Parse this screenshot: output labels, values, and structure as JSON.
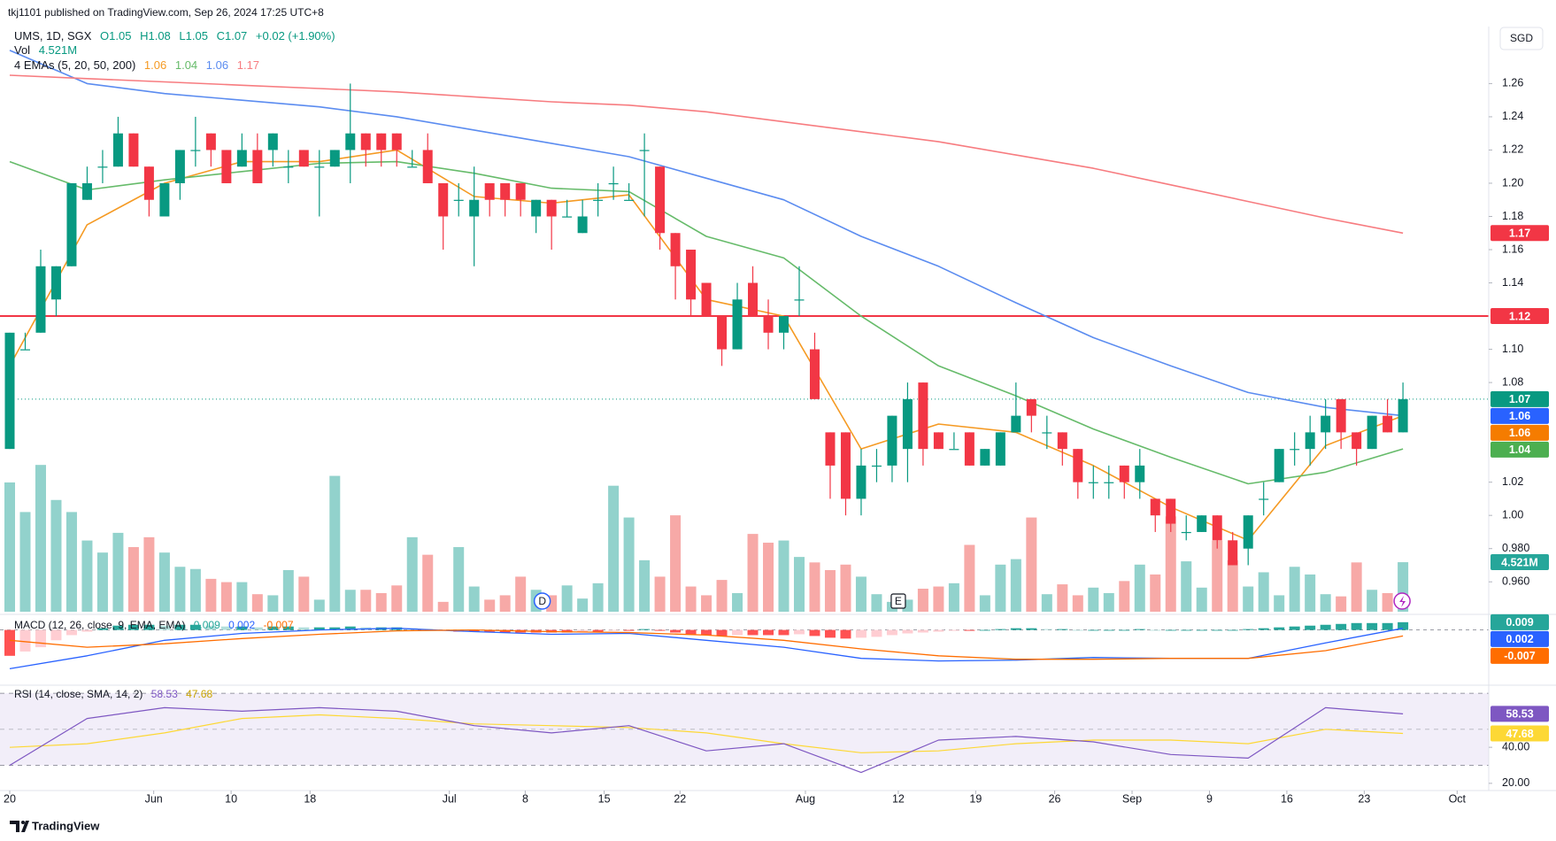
{
  "chart_data": {
    "type": "candlestick",
    "header": "tkj1101 published on TradingView.com, Sep 26, 2024 17:25 UTC+8",
    "symbol": "UMS, 1D, SGX",
    "ohlc_text": [
      "O1.05",
      "H1.08",
      "L1.05",
      "C1.07",
      "+0.02 (+1.90%)"
    ],
    "currency": "SGD",
    "watermark": "TradingView",
    "up_color": "#089981",
    "down_color": "#f23645",
    "ylim": [
      0.942,
      1.289
    ],
    "yticks": [
      {
        "value": 1.26,
        "label": "1.26"
      },
      {
        "value": 1.24,
        "label": "1.24"
      },
      {
        "value": 1.22,
        "label": "1.22"
      },
      {
        "value": 1.2,
        "label": "1.20"
      },
      {
        "value": 1.18,
        "label": "1.18"
      },
      {
        "value": 1.16,
        "label": "1.16"
      },
      {
        "value": 1.14,
        "label": "1.14"
      },
      {
        "value": 1.1,
        "label": "1.10"
      },
      {
        "value": 1.08,
        "label": "1.08"
      },
      {
        "value": 1.02,
        "label": "1.02"
      },
      {
        "value": 1.0,
        "label": "1.00"
      },
      {
        "value": 0.98,
        "label": "0.980"
      },
      {
        "value": 0.96,
        "label": "0.960"
      }
    ],
    "xticks": [
      {
        "value": 0,
        "label": "20"
      },
      {
        "value": 9.3,
        "label": "Jun"
      },
      {
        "value": 14.3,
        "label": "10"
      },
      {
        "value": 19.4,
        "label": "18"
      },
      {
        "value": 28.4,
        "label": "Jul"
      },
      {
        "value": 33.3,
        "label": "8"
      },
      {
        "value": 38.4,
        "label": "15"
      },
      {
        "value": 43.3,
        "label": "22"
      },
      {
        "value": 51.4,
        "label": "Aug"
      },
      {
        "value": 57.4,
        "label": "12"
      },
      {
        "value": 62.4,
        "label": "19"
      },
      {
        "value": 67.5,
        "label": "26"
      },
      {
        "value": 72.5,
        "label": "Sep"
      },
      {
        "value": 77.5,
        "label": "9"
      },
      {
        "value": 82.5,
        "label": "16"
      },
      {
        "value": 87.5,
        "label": "23"
      },
      {
        "value": 93.5,
        "label": "Oct"
      }
    ],
    "ohlc": [
      [
        1.04,
        1.11,
        1.04,
        1.11
      ],
      [
        1.1,
        1.11,
        1.1,
        1.1
      ],
      [
        1.11,
        1.16,
        1.11,
        1.15
      ],
      [
        1.13,
        1.15,
        1.12,
        1.15
      ],
      [
        1.15,
        1.2,
        1.15,
        1.2
      ],
      [
        1.19,
        1.21,
        1.19,
        1.2
      ],
      [
        1.21,
        1.22,
        1.2,
        1.21
      ],
      [
        1.21,
        1.24,
        1.21,
        1.23
      ],
      [
        1.23,
        1.23,
        1.21,
        1.21
      ],
      [
        1.21,
        1.21,
        1.18,
        1.19
      ],
      [
        1.18,
        1.2,
        1.18,
        1.2
      ],
      [
        1.2,
        1.22,
        1.19,
        1.22
      ],
      [
        1.22,
        1.24,
        1.21,
        1.22
      ],
      [
        1.23,
        1.23,
        1.21,
        1.22
      ],
      [
        1.22,
        1.22,
        1.2,
        1.2
      ],
      [
        1.21,
        1.23,
        1.21,
        1.22
      ],
      [
        1.22,
        1.23,
        1.2,
        1.2
      ],
      [
        1.22,
        1.23,
        1.21,
        1.23
      ],
      [
        1.21,
        1.22,
        1.2,
        1.21
      ],
      [
        1.22,
        1.22,
        1.21,
        1.21
      ],
      [
        1.21,
        1.22,
        1.18,
        1.21
      ],
      [
        1.21,
        1.22,
        1.21,
        1.22
      ],
      [
        1.22,
        1.26,
        1.2,
        1.23
      ],
      [
        1.23,
        1.23,
        1.21,
        1.22
      ],
      [
        1.23,
        1.23,
        1.21,
        1.22
      ],
      [
        1.23,
        1.23,
        1.21,
        1.22
      ],
      [
        1.21,
        1.22,
        1.21,
        1.21
      ],
      [
        1.22,
        1.23,
        1.2,
        1.2
      ],
      [
        1.2,
        1.2,
        1.16,
        1.18
      ],
      [
        1.19,
        1.2,
        1.18,
        1.19
      ],
      [
        1.18,
        1.21,
        1.15,
        1.19
      ],
      [
        1.2,
        1.2,
        1.18,
        1.19
      ],
      [
        1.2,
        1.2,
        1.18,
        1.19
      ],
      [
        1.2,
        1.2,
        1.18,
        1.19
      ],
      [
        1.18,
        1.19,
        1.17,
        1.19
      ],
      [
        1.19,
        1.19,
        1.16,
        1.18
      ],
      [
        1.18,
        1.19,
        1.18,
        1.18
      ],
      [
        1.17,
        1.19,
        1.17,
        1.18
      ],
      [
        1.19,
        1.2,
        1.18,
        1.19
      ],
      [
        1.2,
        1.21,
        1.19,
        1.2
      ],
      [
        1.19,
        1.2,
        1.19,
        1.19
      ],
      [
        1.22,
        1.23,
        1.18,
        1.22
      ],
      [
        1.21,
        1.21,
        1.16,
        1.17
      ],
      [
        1.17,
        1.17,
        1.13,
        1.15
      ],
      [
        1.16,
        1.16,
        1.12,
        1.13
      ],
      [
        1.14,
        1.14,
        1.12,
        1.12
      ],
      [
        1.12,
        1.12,
        1.09,
        1.1
      ],
      [
        1.1,
        1.14,
        1.1,
        1.13
      ],
      [
        1.14,
        1.15,
        1.12,
        1.12
      ],
      [
        1.12,
        1.13,
        1.1,
        1.11
      ],
      [
        1.11,
        1.12,
        1.1,
        1.12
      ],
      [
        1.13,
        1.15,
        1.12,
        1.13
      ],
      [
        1.1,
        1.11,
        1.07,
        1.07
      ],
      [
        1.05,
        1.05,
        1.01,
        1.03
      ],
      [
        1.05,
        1.05,
        1.0,
        1.01
      ],
      [
        1.01,
        1.04,
        1.0,
        1.03
      ],
      [
        1.03,
        1.04,
        1.02,
        1.03
      ],
      [
        1.03,
        1.06,
        1.02,
        1.06
      ],
      [
        1.04,
        1.08,
        1.02,
        1.07
      ],
      [
        1.08,
        1.08,
        1.03,
        1.04
      ],
      [
        1.05,
        1.05,
        1.04,
        1.04
      ],
      [
        1.04,
        1.05,
        1.04,
        1.04
      ],
      [
        1.05,
        1.05,
        1.03,
        1.03
      ],
      [
        1.03,
        1.04,
        1.03,
        1.04
      ],
      [
        1.03,
        1.05,
        1.03,
        1.05
      ],
      [
        1.05,
        1.08,
        1.05,
        1.06
      ],
      [
        1.07,
        1.07,
        1.05,
        1.06
      ],
      [
        1.05,
        1.06,
        1.04,
        1.05
      ],
      [
        1.05,
        1.05,
        1.03,
        1.04
      ],
      [
        1.04,
        1.04,
        1.01,
        1.02
      ],
      [
        1.02,
        1.03,
        1.01,
        1.02
      ],
      [
        1.02,
        1.03,
        1.01,
        1.02
      ],
      [
        1.03,
        1.03,
        1.01,
        1.02
      ],
      [
        1.02,
        1.04,
        1.01,
        1.03
      ],
      [
        1.01,
        1.01,
        0.99,
        1.0
      ],
      [
        1.01,
        1.01,
        0.99,
        0.995
      ],
      [
        0.99,
        1.0,
        0.985,
        0.99
      ],
      [
        0.99,
        1.0,
        0.99,
        1.0
      ],
      [
        1.0,
        1.0,
        0.98,
        0.985
      ],
      [
        0.985,
        0.99,
        0.97,
        0.97
      ],
      [
        0.98,
        1.0,
        0.97,
        1.0
      ],
      [
        1.01,
        1.02,
        1.0,
        1.01
      ],
      [
        1.02,
        1.04,
        1.02,
        1.04
      ],
      [
        1.04,
        1.05,
        1.03,
        1.04
      ],
      [
        1.04,
        1.06,
        1.03,
        1.05
      ],
      [
        1.05,
        1.07,
        1.04,
        1.06
      ],
      [
        1.07,
        1.07,
        1.04,
        1.05
      ],
      [
        1.05,
        1.05,
        1.03,
        1.04
      ],
      [
        1.04,
        1.06,
        1.04,
        1.06
      ],
      [
        1.06,
        1.07,
        1.05,
        1.05
      ],
      [
        1.05,
        1.08,
        1.05,
        1.07
      ]
    ],
    "volume": {
      "name": "Vol",
      "ylim": [
        0,
        16
      ],
      "last_value_label": "4.521M",
      "values": [
        11.8,
        9.1,
        13.4,
        10.2,
        9.1,
        6.5,
        5.4,
        7.2,
        5.9,
        6.8,
        5.4,
        4.1,
        3.9,
        3.0,
        2.7,
        2.7,
        1.6,
        1.5,
        3.8,
        3.2,
        1.1,
        12.4,
        2.0,
        2.0,
        1.7,
        2.4,
        6.8,
        5.2,
        0.9,
        5.9,
        2.3,
        1.1,
        1.5,
        3.2,
        2.0,
        1.5,
        2.4,
        1.2,
        2.6,
        11.5,
        8.6,
        4.7,
        3.2,
        8.8,
        2.3,
        1.5,
        2.9,
        1.7,
        7.1,
        6.3,
        6.5,
        5.0,
        4.5,
        3.8,
        4.3,
        3.2,
        1.6,
        0.9,
        1.1,
        2.1,
        2.3,
        2.6,
        6.1,
        1.5,
        4.3,
        4.8,
        8.6,
        1.6,
        2.5,
        1.5,
        2.2,
        1.7,
        2.8,
        4.3,
        3.4,
        8.7,
        4.6,
        2.2,
        6.5,
        4.7,
        2.3,
        3.6,
        1.5,
        4.1,
        3.4,
        1.6,
        1.4,
        4.5,
        2.0,
        1.7,
        4.521
      ]
    },
    "ema": {
      "name": "4 EMAs (5, 20, 50, 200)",
      "x": [
        0,
        5,
        10,
        15,
        20,
        25,
        30,
        35,
        40,
        45,
        50,
        55,
        60,
        65,
        70,
        75,
        80,
        85,
        90
      ],
      "series": [
        {
          "color": "#f59a23",
          "values": [
            1.09,
            1.175,
            1.2,
            1.213,
            1.213,
            1.22,
            1.192,
            1.188,
            1.193,
            1.13,
            1.12,
            1.04,
            1.055,
            1.05,
            1.03,
            1.005,
            0.985,
            1.042,
            1.06
          ]
        },
        {
          "color": "#66bb6a",
          "values": [
            1.213,
            1.196,
            1.202,
            1.207,
            1.212,
            1.213,
            1.206,
            1.197,
            1.195,
            1.168,
            1.155,
            1.12,
            1.09,
            1.072,
            1.052,
            1.035,
            1.019,
            1.026,
            1.04
          ]
        },
        {
          "color": "#5b8cf0",
          "values": [
            1.28,
            1.26,
            1.254,
            1.25,
            1.246,
            1.24,
            1.232,
            1.224,
            1.216,
            1.203,
            1.19,
            1.168,
            1.15,
            1.128,
            1.107,
            1.09,
            1.074,
            1.065,
            1.06
          ]
        },
        {
          "color": "#f77c80",
          "values": [
            1.265,
            1.263,
            1.261,
            1.259,
            1.257,
            1.255,
            1.252,
            1.249,
            1.247,
            1.243,
            1.237,
            1.231,
            1.225,
            1.217,
            1.209,
            1.199,
            1.189,
            1.179,
            1.17
          ]
        }
      ]
    },
    "hline": {
      "value": 1.12,
      "color": "#f23645"
    },
    "events": [
      {
        "label": "D",
        "x": 34.4
      },
      {
        "label": "E",
        "x": 57.4
      }
    ],
    "macd": {
      "name": "MACD (12, 26, close, 9, EMA, EMA)",
      "ylim": [
        -0.06,
        0.015
      ],
      "histogram": [
        -0.03,
        -0.025,
        -0.02,
        -0.012,
        -0.006,
        -0.002,
        0.002,
        0.005,
        0.006,
        0.006,
        0.005,
        0.006,
        0.006,
        0.005,
        0.004,
        0.004,
        0.003,
        0.004,
        0.004,
        0.003,
        0.003,
        0.003,
        0.004,
        0.003,
        0.003,
        0.003,
        0.002,
        0.001,
        -0.001,
        -0.002,
        -0.002,
        -0.002,
        -0.003,
        -0.003,
        -0.003,
        -0.003,
        -0.003,
        -0.002,
        -0.002,
        -0.001,
        -0.001,
        0.001,
        -0.001,
        -0.003,
        -0.005,
        -0.006,
        -0.007,
        -0.006,
        -0.006,
        -0.006,
        -0.006,
        -0.005,
        -0.007,
        -0.009,
        -0.01,
        -0.009,
        -0.008,
        -0.006,
        -0.004,
        -0.003,
        -0.002,
        -0.001,
        -0.001,
        0.0,
        0.001,
        0.002,
        0.002,
        0.001,
        0.001,
        0.0,
        0.0,
        0.0,
        0.0,
        0.001,
        0.0,
        0.0,
        0.0,
        0.0,
        0.0,
        0.0,
        0.001,
        0.002,
        0.003,
        0.004,
        0.005,
        0.006,
        0.007,
        0.008,
        0.008,
        0.008,
        0.009
      ],
      "x": [
        0,
        5,
        10,
        15,
        20,
        25,
        30,
        35,
        40,
        45,
        50,
        55,
        60,
        65,
        70,
        75,
        80,
        85,
        90
      ],
      "macd_color": "#2962ff",
      "macd": [
        -0.045,
        -0.03,
        -0.012,
        -0.004,
        0.0,
        0.002,
        -0.002,
        -0.005,
        -0.004,
        -0.012,
        -0.02,
        -0.033,
        -0.036,
        -0.035,
        -0.032,
        -0.033,
        -0.033,
        -0.015,
        0.002
      ],
      "signal_color": "#ff6d00",
      "signal": [
        -0.012,
        -0.02,
        -0.016,
        -0.01,
        -0.005,
        -0.001,
        0.0,
        -0.002,
        -0.003,
        -0.006,
        -0.012,
        -0.022,
        -0.03,
        -0.034,
        -0.034,
        -0.033,
        -0.033,
        -0.024,
        -0.007
      ]
    },
    "rsi": {
      "name": "RSI (14, close, SMA, 14, 2)",
      "ylim": [
        16,
        72.5
      ],
      "bands": [
        70,
        50,
        30
      ],
      "yticks": [
        {
          "value": 40,
          "label": "40.00"
        },
        {
          "value": 20,
          "label": "20.00"
        }
      ],
      "x": [
        0,
        5,
        10,
        15,
        20,
        25,
        30,
        35,
        40,
        45,
        50,
        55,
        60,
        65,
        70,
        75,
        80,
        85,
        90
      ],
      "rsi_color": "#7e57c2",
      "rsi": [
        30,
        56,
        62,
        60,
        62,
        60,
        52,
        48,
        52,
        38,
        42,
        26,
        44,
        46,
        43,
        36,
        34,
        62,
        58.53
      ],
      "sma_color": "#fdd835",
      "sma": [
        40,
        42,
        48,
        56,
        58,
        56,
        53,
        52,
        51,
        48,
        42,
        37,
        38,
        42,
        44,
        44,
        42,
        50,
        47.68
      ]
    }
  }
}
